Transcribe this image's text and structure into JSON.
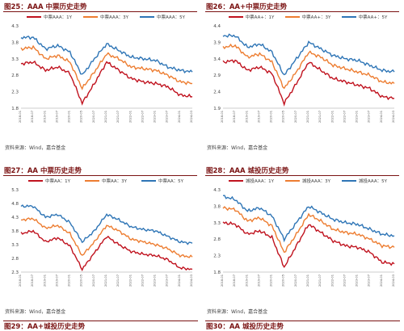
{
  "panels": [
    {
      "title": "图25：AAA 中票历史走势",
      "legend": [
        "中票AAA：1Y",
        "中票AAA：3Y",
        "中票AAA：5Y"
      ],
      "yticks": [
        "4.3",
        "3.8",
        "3.3",
        "2.8",
        "2.3",
        "1.8"
      ],
      "source": "资料来源：Wind，嘉合基金"
    },
    {
      "title": "图26：AA+中票历史走势",
      "legend": [
        "中票AA+：1Y",
        "中票AA+：3Y",
        "中票AA+：5Y"
      ],
      "yticks": [
        "4.4",
        "3.9",
        "3.4",
        "2.9",
        "2.4",
        "1.9"
      ],
      "source": "资料来源：Wind，嘉合基金"
    },
    {
      "title": "图27：AA 中票历史走势",
      "legend": [
        "中票AA：1Y",
        "中票AA：3Y",
        "中票AA：5Y"
      ],
      "yticks": [
        "5.3",
        "4.8",
        "4.3",
        "3.8",
        "3.3",
        "2.8",
        "2.3"
      ],
      "source": "资料来源：Wind，嘉合基金",
      "bottom_title": "图29：AA+城投历史走势"
    },
    {
      "title": "图28：AAA 城投历史走势",
      "legend": [
        "城投AAA：1Y",
        "城投AAA：3Y",
        "城投AAA：5Y"
      ],
      "yticks": [
        "4.3",
        "3.8",
        "3.3",
        "2.8",
        "2.3",
        "1.8"
      ],
      "source": "资料来源：Wind，嘉合基金",
      "bottom_title": "图30：AA 城投历史走势"
    }
  ],
  "colors": {
    "y1": "#c0121e",
    "y3": "#ed7d31",
    "y5": "#2e75b6",
    "title": "#7a1212"
  },
  "chart_data": [
    {
      "type": "line",
      "ylim": [
        1.8,
        4.3
      ],
      "x": [
        "2018-01",
        "2018-07",
        "2019-01",
        "2019-07",
        "2020-01",
        "2020-05",
        "2020-07",
        "2021-01",
        "2021-07",
        "2022-01",
        "2022-07",
        "2023-01",
        "2023-07",
        "2024-01",
        "2024-03"
      ],
      "series": [
        {
          "name": "中票AAA：1Y",
          "values": [
            3.15,
            3.2,
            2.95,
            3.05,
            2.85,
            1.95,
            2.55,
            3.2,
            2.95,
            2.7,
            2.6,
            2.55,
            2.45,
            2.2,
            2.15
          ]
        },
        {
          "name": "中票AAA：3Y",
          "values": [
            3.6,
            3.65,
            3.3,
            3.4,
            3.2,
            2.4,
            2.9,
            3.45,
            3.3,
            3.05,
            3.0,
            2.95,
            2.8,
            2.6,
            2.55
          ]
        },
        {
          "name": "中票AAA：5Y",
          "values": [
            3.95,
            3.95,
            3.6,
            3.7,
            3.5,
            2.8,
            3.3,
            3.75,
            3.55,
            3.35,
            3.3,
            3.25,
            3.05,
            2.95,
            2.9
          ]
        }
      ]
    },
    {
      "type": "line",
      "ylim": [
        1.9,
        4.4
      ],
      "x": [
        "2018-01",
        "2018-07",
        "2019-01",
        "2019-07",
        "2020-01",
        "2020-05",
        "2020-07",
        "2021-01",
        "2021-07",
        "2022-01",
        "2022-07",
        "2023-01",
        "2023-07",
        "2024-01",
        "2024-03"
      ],
      "series": [
        {
          "name": "中票AA+：1Y",
          "values": [
            3.3,
            3.35,
            3.05,
            3.15,
            2.95,
            2.05,
            2.65,
            3.3,
            3.05,
            2.8,
            2.7,
            2.6,
            2.5,
            2.25,
            2.2
          ]
        },
        {
          "name": "中票AA+：3Y",
          "values": [
            3.75,
            3.8,
            3.45,
            3.55,
            3.3,
            2.5,
            3.0,
            3.6,
            3.45,
            3.2,
            3.1,
            3.0,
            2.9,
            2.7,
            2.65
          ]
        },
        {
          "name": "中票AA+：5Y",
          "values": [
            4.1,
            4.1,
            3.75,
            3.85,
            3.6,
            2.9,
            3.4,
            3.9,
            3.7,
            3.5,
            3.4,
            3.35,
            3.2,
            3.05,
            3.0
          ]
        }
      ]
    },
    {
      "type": "line",
      "ylim": [
        2.3,
        5.3
      ],
      "x": [
        "2018-01",
        "2018-07",
        "2019-01",
        "2019-07",
        "2020-01",
        "2020-05",
        "2020-07",
        "2021-01",
        "2021-07",
        "2022-01",
        "2022-07",
        "2023-01",
        "2023-07",
        "2024-01",
        "2024-03"
      ],
      "series": [
        {
          "name": "中票AA：1Y",
          "values": [
            3.7,
            3.8,
            3.4,
            3.55,
            3.25,
            2.4,
            3.0,
            3.6,
            3.3,
            3.05,
            2.95,
            2.9,
            2.75,
            2.45,
            2.4
          ]
        },
        {
          "name": "中票AA：3Y",
          "values": [
            4.2,
            4.25,
            3.9,
            4.0,
            3.7,
            2.9,
            3.4,
            4.0,
            3.8,
            3.5,
            3.4,
            3.3,
            3.15,
            2.9,
            2.85
          ]
        },
        {
          "name": "中票AA：5Y",
          "values": [
            4.7,
            4.7,
            4.3,
            4.4,
            4.1,
            3.4,
            3.8,
            4.4,
            4.2,
            3.95,
            3.85,
            3.8,
            3.6,
            3.4,
            3.35
          ]
        }
      ]
    },
    {
      "type": "line",
      "ylim": [
        1.8,
        4.3
      ],
      "x": [
        "2018-01",
        "2018-07",
        "2019-01",
        "2019-07",
        "2020-01",
        "2020-05",
        "2020-07",
        "2021-01",
        "2021-07",
        "2022-01",
        "2022-07",
        "2023-01",
        "2023-07",
        "2024-01",
        "2024-03"
      ],
      "series": [
        {
          "name": "城投AAA：1Y",
          "values": [
            3.3,
            3.25,
            2.95,
            3.05,
            2.85,
            1.95,
            2.6,
            3.25,
            3.0,
            2.75,
            2.6,
            2.55,
            2.4,
            2.1,
            2.05
          ]
        },
        {
          "name": "城投AAA：3Y",
          "values": [
            3.75,
            3.7,
            3.35,
            3.45,
            3.2,
            2.4,
            2.95,
            3.55,
            3.35,
            3.1,
            3.0,
            2.95,
            2.8,
            2.6,
            2.55
          ]
        },
        {
          "name": "城投AAA：5Y",
          "values": [
            4.1,
            4.0,
            3.65,
            3.75,
            3.5,
            2.8,
            3.3,
            3.8,
            3.6,
            3.4,
            3.3,
            3.25,
            3.1,
            2.95,
            2.9
          ]
        }
      ]
    }
  ]
}
